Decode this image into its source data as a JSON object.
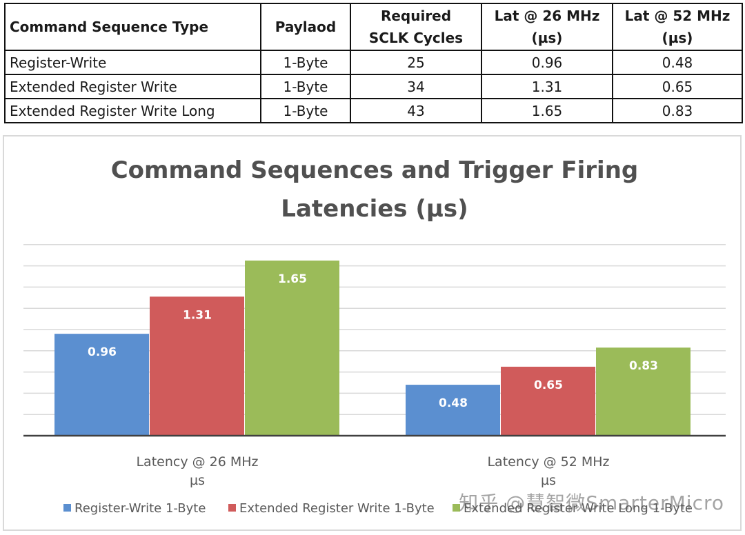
{
  "table": {
    "headers": [
      [
        "Command Sequence Type"
      ],
      [
        "Paylaod"
      ],
      [
        "Required",
        "SCLK Cycles"
      ],
      [
        "Lat @ 26 MHz",
        "(µs)"
      ],
      [
        "Lat @ 52 MHz",
        "(µs)"
      ]
    ],
    "rows": [
      [
        "Register-Write",
        "1-Byte",
        "25",
        "0.96",
        "0.48"
      ],
      [
        "Extended Register Write",
        "1-Byte",
        "34",
        "1.31",
        "0.65"
      ],
      [
        "Extended Register Write Long",
        "1-Byte",
        "43",
        "1.65",
        "0.83"
      ]
    ]
  },
  "chart_data": {
    "type": "bar",
    "title": "Command Sequences and Trigger Firing Latencies (µs)",
    "title_lines": [
      "Command Sequences and Trigger Firing",
      "Latencies (µs)"
    ],
    "categories": [
      [
        "Latency @ 26 MHz",
        "µs"
      ],
      [
        "Latency @ 52 MHz",
        "µs"
      ]
    ],
    "series": [
      {
        "name": "Register-Write 1-Byte",
        "values": [
          0.96,
          0.48
        ],
        "color": "#5b8fd0"
      },
      {
        "name": "Extended Register Write 1-Byte",
        "values": [
          1.31,
          0.65
        ],
        "color": "#d05b5b"
      },
      {
        "name": "Extended Register Write Long 1-Byte",
        "values": [
          1.65,
          0.83
        ],
        "color": "#9bbb59"
      }
    ],
    "ylim": [
      0,
      2.0
    ],
    "gridlines": 9,
    "legend_position": "bottom"
  },
  "watermark": "知乎 @慧智微SmarterMicro"
}
